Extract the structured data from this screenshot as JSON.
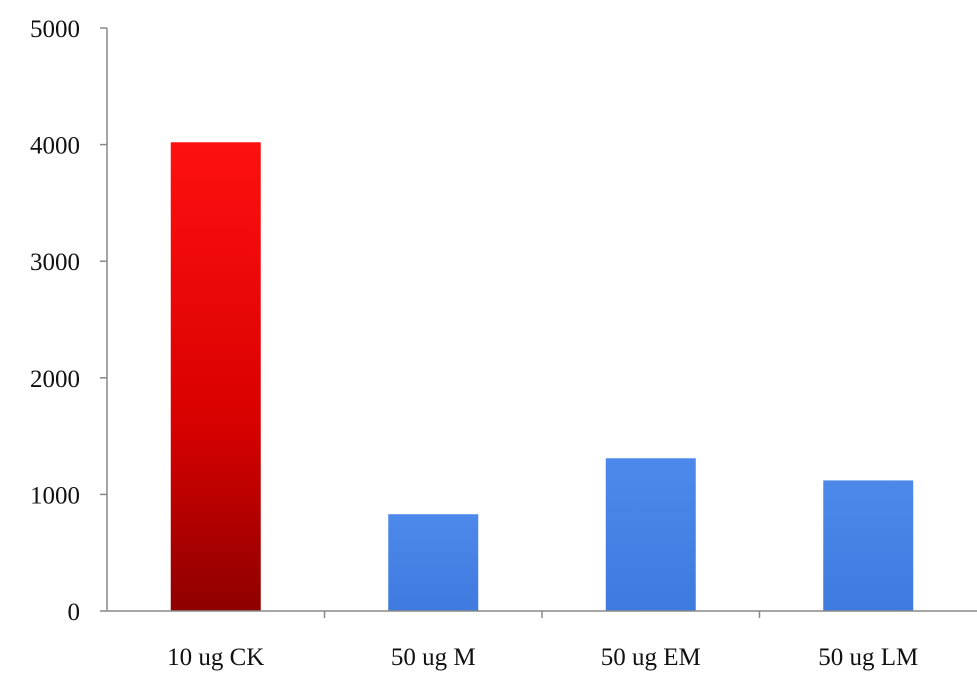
{
  "chart_data": {
    "type": "bar",
    "categories": [
      "10 ug CK",
      "50 ug M",
      "50 ug EM",
      "50 ug LM"
    ],
    "values": [
      4020,
      830,
      1310,
      1120
    ],
    "ylim": [
      0,
      5000
    ],
    "yticks": [
      0,
      1000,
      2000,
      3000,
      4000,
      5000
    ],
    "title": "",
    "xlabel": "",
    "ylabel": "",
    "grid": false,
    "legend": "none",
    "colors": [
      "#e8000b",
      "#4a86e8",
      "#4a86e8",
      "#4a86e8"
    ]
  }
}
